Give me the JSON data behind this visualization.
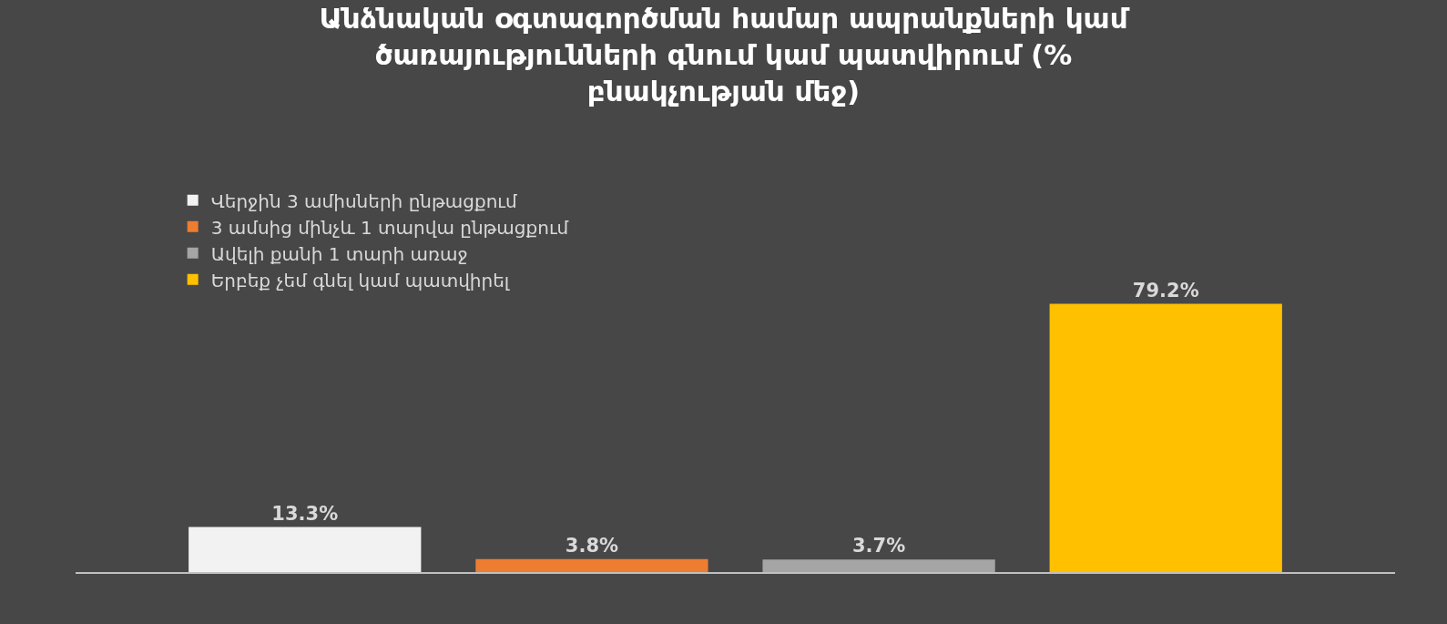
{
  "chart_data": {
    "type": "bar",
    "title": "Անձնական օգտագործման համար ապրանքների կամ ծառայությունների գնում կամ պատվիրում (% բնակչության մեջ)",
    "categories": [
      null
    ],
    "series": [
      {
        "name": "Վերջին 3 ամիսների ընթացքում",
        "color": "#f2f2f2",
        "values": [
          13.3
        ],
        "value_labels": [
          "13.3%"
        ]
      },
      {
        "name": "3 ամսից մինչև 1 տարվա ընթացքում",
        "color": "#ed7d31",
        "values": [
          3.8
        ],
        "value_labels": [
          "3.8%"
        ]
      },
      {
        "name": "Ավելի քանի 1 տարի առաջ",
        "color": "#a5a5a5",
        "values": [
          3.7
        ],
        "value_labels": [
          "3.7%"
        ]
      },
      {
        "name": "Երբեք չեմ գնել կամ պատվիրել",
        "color": "#ffc000",
        "values": [
          79.2
        ],
        "value_labels": [
          "79.2%"
        ]
      }
    ],
    "legend": "top"
  }
}
